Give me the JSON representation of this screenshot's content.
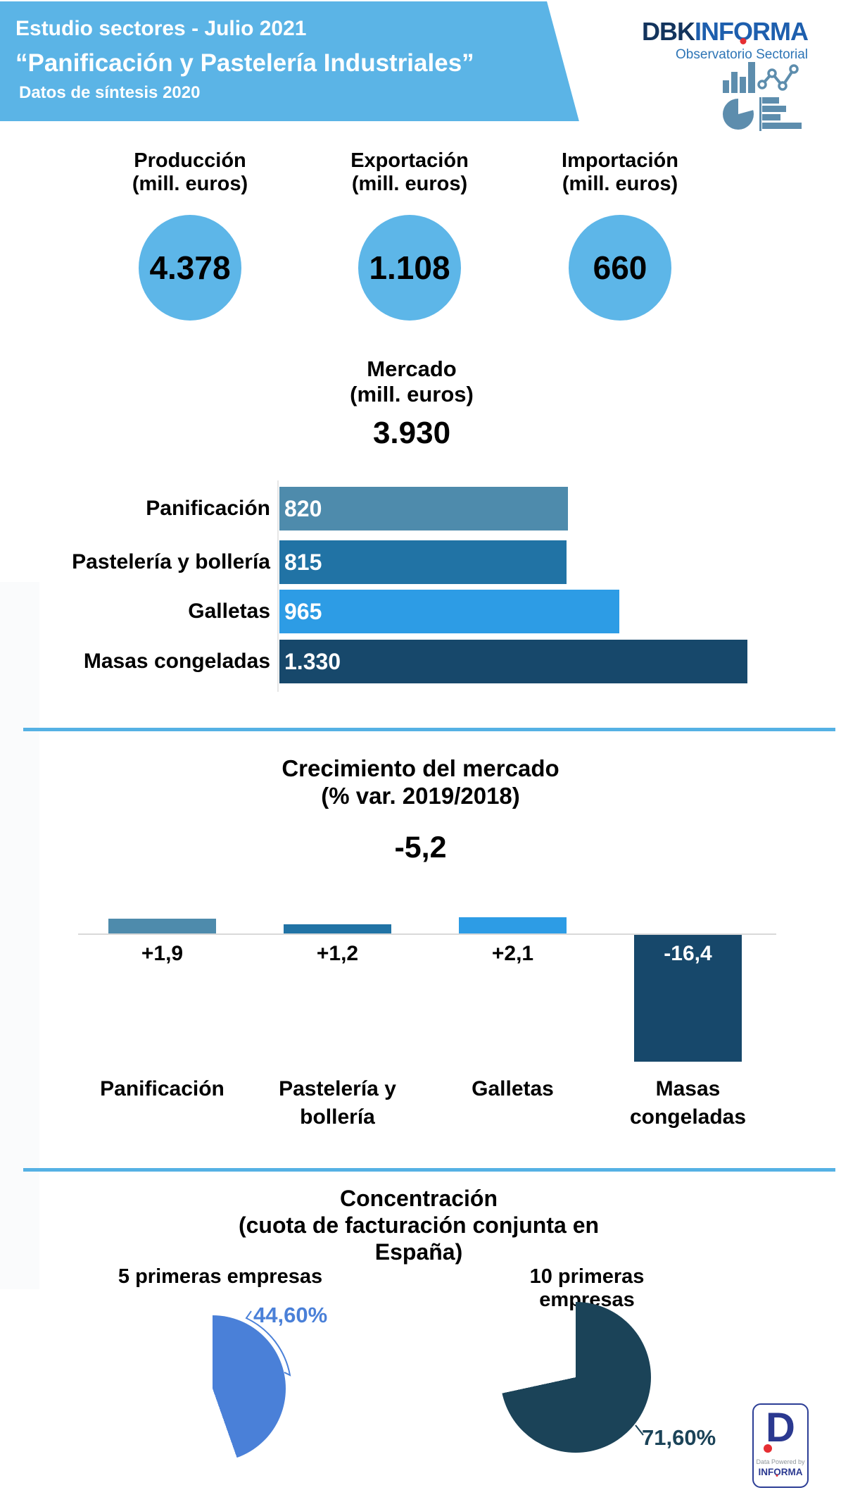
{
  "header": {
    "line1": "Estudio sectores - Julio 2021",
    "line2": "“Panificación y Pastelería Industriales”",
    "line3": "Datos de síntesis 2020"
  },
  "brand": {
    "dbk": "DBK",
    "informa_prefix": "INF",
    "informa_o": "O",
    "informa_suffix": "RMA",
    "tagline": "Observatorio Sectorial"
  },
  "kpis": [
    {
      "label": "Producción",
      "sublabel": "(mill. euros)",
      "value": "4.378"
    },
    {
      "label": "Exportación",
      "sublabel": "(mill. euros)",
      "value": "1.108"
    },
    {
      "label": "Importación",
      "sublabel": "(mill. euros)",
      "value": "660"
    }
  ],
  "market": {
    "label": "Mercado",
    "sublabel": "(mill. euros)",
    "value": "3.930"
  },
  "growth": {
    "title": "Crecimiento del mercado",
    "subtitle": "(% var. 2019/2018)",
    "total": "-5,2"
  },
  "concentration": {
    "title": "Concentración",
    "subtitle": "(cuota de facturación conjunta en España)"
  },
  "badge": {
    "letter": "D",
    "line1": "Data Powered by",
    "line2_prefix": "INF",
    "line2_o": "O",
    "line2_suffix": "RMA"
  },
  "colors": {
    "banner_blue": "#5bb4e6",
    "divider_blue": "#55b1e4",
    "circle_blue": "#5db6e8",
    "baseline_grey": "#d9d9d9",
    "steel": "#5d8dad",
    "logo_navy": "#13345d",
    "logo_blue": "#1e5fae",
    "logo_red": "#e62e32",
    "tagline_blue": "#2e75b6",
    "badge_blue": "#2b3990",
    "badge_grey": "#8f969b",
    "pie_left_blue": "#4a80d8",
    "pie_right_navy": "#1b4358"
  },
  "chart_data": [
    {
      "type": "bar",
      "orientation": "horizontal",
      "title": "Mercado (mill. euros)",
      "categories": [
        "Panificación",
        "Pastelería y bollería",
        "Galletas",
        "Masas congeladas"
      ],
      "values": [
        820,
        815,
        965,
        1330
      ],
      "value_labels": [
        "820",
        "815",
        "965",
        "1.330"
      ],
      "colors": [
        "#4e8bac",
        "#2173a5",
        "#2d9ce5",
        "#17486b"
      ],
      "xlim": [
        0,
        1400
      ],
      "grid": false
    },
    {
      "type": "bar",
      "orientation": "vertical",
      "title": "Crecimiento del mercado (% var. 2019/2018)",
      "total": -5.2,
      "categories": [
        "Panificación",
        "Pastelería y bollería",
        "Galletas",
        "Masas congeladas"
      ],
      "categories_wrapped": [
        [
          "Panificación"
        ],
        [
          "Pastelería y",
          "bollería"
        ],
        [
          "Galletas"
        ],
        [
          "Masas",
          "congeladas"
        ]
      ],
      "values": [
        1.9,
        1.2,
        2.1,
        -16.4
      ],
      "value_labels": [
        "+1,9",
        "+1,2",
        "+2,1",
        "-16,4"
      ],
      "colors": [
        "#4e8bac",
        "#2173a5",
        "#2d9ce5",
        "#17486b"
      ],
      "ylim": [
        -17,
        3
      ],
      "baseline": 0,
      "grid": false
    },
    {
      "type": "pie",
      "title": "5 primeras empresas",
      "value": 44.6,
      "display": "44,60%",
      "remainder": 55.4,
      "color": "#4a80d8"
    },
    {
      "type": "pie",
      "title": "10 primeras empresas",
      "value": 71.6,
      "display": "71,60%",
      "remainder": 28.4,
      "color": "#1b4358"
    }
  ]
}
